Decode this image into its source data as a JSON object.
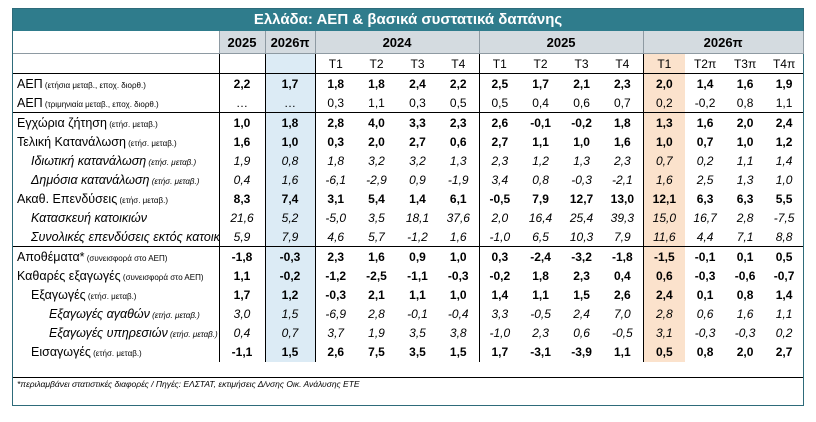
{
  "title": "Ελλάδα: ΑΕΠ & βασικά συστατικά δαπάνης",
  "headers": {
    "annual": [
      "2025",
      "2026π"
    ],
    "groups": [
      "2024",
      "2025",
      "2026π"
    ],
    "quarters_2024": [
      "Τ1",
      "Τ2",
      "Τ3",
      "Τ4"
    ],
    "quarters_2025": [
      "Τ1",
      "Τ2",
      "Τ3",
      "Τ4"
    ],
    "quarters_2026": [
      "Τ1",
      "Τ2π",
      "Τ3π",
      "Τ4π"
    ]
  },
  "rows": [
    {
      "main": "ΑΕΠ",
      "note": " (ετήσια μεταβ., εποχ. διορθ.)",
      "vals": [
        "2,2",
        "1,7",
        "1,8",
        "1,8",
        "2,4",
        "2,2",
        "2,5",
        "1,7",
        "2,1",
        "2,3",
        "2,0",
        "1,4",
        "1,6",
        "1,9"
      ],
      "style": "bold",
      "indent": 0
    },
    {
      "main": "ΑΕΠ",
      "note": " (τριμηνιαία μεταβ., εποχ. διορθ.)",
      "vals": [
        "…",
        "…",
        "0,3",
        "1,1",
        "0,3",
        "0,5",
        "0,5",
        "0,4",
        "0,6",
        "0,7",
        "0,2",
        "-0,2",
        "0,8",
        "1,1"
      ],
      "style": "normal",
      "indent": 0
    },
    {
      "main": "Εγχώρια ζήτηση",
      "note": " (ετήσ. μεταβ.)",
      "vals": [
        "1,0",
        "1,8",
        "2,8",
        "4,0",
        "3,3",
        "2,3",
        "2,6",
        "-0,1",
        "-0,2",
        "1,8",
        "1,3",
        "1,6",
        "2,0",
        "2,4"
      ],
      "style": "bold",
      "indent": 0
    },
    {
      "main": "Τελική Κατανάλωση",
      "note": " (ετήσ. μεταβ.)",
      "vals": [
        "1,6",
        "1,0",
        "0,3",
        "2,0",
        "2,7",
        "0,6",
        "2,7",
        "1,1",
        "1,0",
        "1,6",
        "1,0",
        "0,7",
        "1,0",
        "1,2"
      ],
      "style": "bold",
      "indent": 0
    },
    {
      "main": "Ιδιωτική κατανάλωση",
      "note": " (ετήσ. μεταβ.)",
      "vals": [
        "1,9",
        "0,8",
        "1,8",
        "3,2",
        "3,2",
        "1,3",
        "2,3",
        "1,2",
        "1,3",
        "2,3",
        "0,7",
        "0,2",
        "1,1",
        "1,4"
      ],
      "style": "italic",
      "indent": 1
    },
    {
      "main": "Δημόσια κατανάλωση",
      "note": " (ετήσ. μεταβ.)",
      "vals": [
        "0,4",
        "1,6",
        "-6,1",
        "-2,9",
        "0,9",
        "-1,9",
        "3,4",
        "0,8",
        "-0,3",
        "-2,1",
        "1,6",
        "2,5",
        "1,3",
        "1,0"
      ],
      "style": "italic",
      "indent": 1
    },
    {
      "main": "Ακαθ. Επενδύσεις",
      "note": " (ετήσ. μεταβ.)",
      "vals": [
        "8,3",
        "7,4",
        "3,1",
        "5,4",
        "1,4",
        "6,1",
        "-0,5",
        "7,9",
        "12,7",
        "13,0",
        "12,1",
        "6,3",
        "6,3",
        "5,5"
      ],
      "style": "bold",
      "indent": 0
    },
    {
      "main": "Κατασκευή κατοικιών",
      "note": "",
      "vals": [
        "21,6",
        "5,2",
        "-5,0",
        "3,5",
        "18,1",
        "37,6",
        "2,0",
        "16,4",
        "25,4",
        "39,3",
        "15,0",
        "16,7",
        "2,8",
        "-7,5"
      ],
      "style": "italic",
      "indent": 1
    },
    {
      "main": "Συνολικές επενδύσεις εκτός κατοικιών",
      "note": "",
      "vals": [
        "5,9",
        "7,9",
        "4,6",
        "5,7",
        "-1,2",
        "1,6",
        "-1,0",
        "6,5",
        "10,3",
        "7,9",
        "11,6",
        "4,4",
        "7,1",
        "8,8"
      ],
      "style": "italic",
      "indent": 1
    },
    {
      "main": "Αποθέματα*",
      "note": " (συνεισφορά στο ΑΕΠ)",
      "vals": [
        "-1,8",
        "-0,3",
        "2,3",
        "1,6",
        "0,9",
        "1,0",
        "0,3",
        "-2,4",
        "-3,2",
        "-1,8",
        "-1,5",
        "-0,1",
        "0,1",
        "0,5"
      ],
      "style": "bold",
      "indent": 0
    },
    {
      "main": "Καθαρές εξαγωγές",
      "note": " (συνεισφορά στο ΑΕΠ)",
      "vals": [
        "1,1",
        "-0,2",
        "-1,2",
        "-2,5",
        "-1,1",
        "-0,3",
        "-0,2",
        "1,8",
        "2,3",
        "0,4",
        "0,6",
        "-0,3",
        "-0,6",
        "-0,7"
      ],
      "style": "bold",
      "indent": 0
    },
    {
      "main": "Εξαγωγές",
      "note": " (ετήσ. μεταβ.)",
      "vals": [
        "1,7",
        "1,2",
        "-0,3",
        "2,1",
        "1,1",
        "1,0",
        "1,4",
        "1,1",
        "1,5",
        "2,6",
        "2,4",
        "0,1",
        "0,8",
        "1,4"
      ],
      "style": "bold",
      "indent": 1
    },
    {
      "main": "Εξαγωγές αγαθών",
      "note": " (ετήσ. μεταβ.)",
      "vals": [
        "3,0",
        "1,5",
        "-6,9",
        "2,8",
        "-0,1",
        "-0,4",
        "3,3",
        "-0,5",
        "2,4",
        "7,0",
        "2,8",
        "0,6",
        "1,6",
        "1,1"
      ],
      "style": "italic",
      "indent": 2
    },
    {
      "main": "Εξαγωγές υπηρεσιών",
      "note": " (ετήσ. μεταβ.)",
      "vals": [
        "0,4",
        "0,7",
        "3,7",
        "1,9",
        "3,5",
        "3,8",
        "-1,0",
        "2,3",
        "0,6",
        "-0,5",
        "3,1",
        "-0,3",
        "-0,3",
        "0,2"
      ],
      "style": "italic",
      "indent": 2
    },
    {
      "main": "Εισαγωγές",
      "note": " (ετήσ. μεταβ.)",
      "vals": [
        "-1,1",
        "1,5",
        "2,6",
        "7,5",
        "3,5",
        "1,5",
        "1,7",
        "-3,1",
        "-3,9",
        "1,1",
        "0,5",
        "0,8",
        "2,0",
        "2,7"
      ],
      "style": "bold",
      "indent": 1
    }
  ],
  "footnote": "*περιλαμβάνει στατιστικές διαφορές / Πηγές: ΕΛΣΤΑΤ, εκτιμήσεις Δ/νσης Οικ. Ανάλυσης ΕΤΕ"
}
